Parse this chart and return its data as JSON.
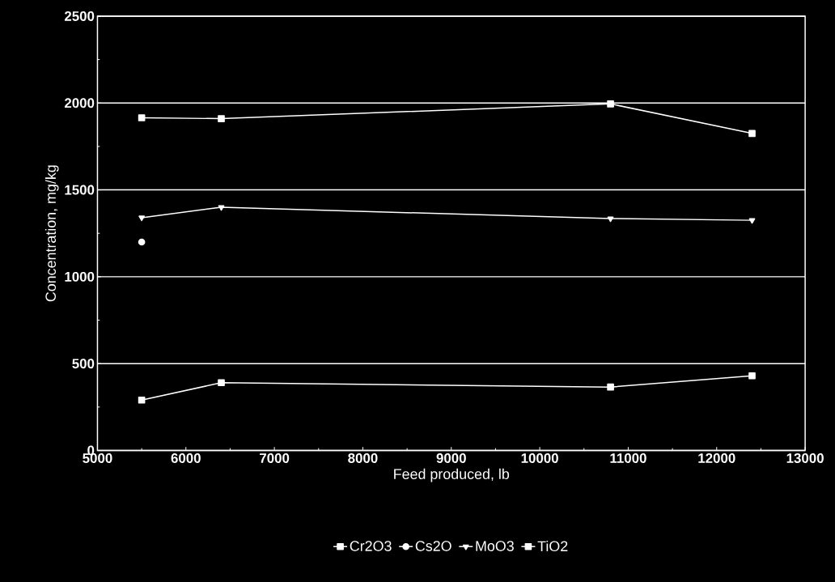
{
  "chart_data": {
    "type": "line",
    "xlabel": "Feed produced, lb",
    "ylabel": "Concentration, mg/kg",
    "xlim": [
      5000,
      13000
    ],
    "xticks": [
      5000,
      6000,
      7000,
      8000,
      9000,
      10000,
      11000,
      12000,
      13000
    ],
    "ylim": [
      0,
      2500
    ],
    "yticks": [
      0,
      500,
      1000,
      1500,
      2000,
      2500
    ],
    "grid": "y",
    "legend": "bottom",
    "series": [
      {
        "name": "Cr2O3",
        "color": "#ffffff",
        "marker": "square",
        "x": [
          5500,
          6400,
          10800,
          12400
        ],
        "values": [
          290,
          390,
          365,
          430
        ]
      },
      {
        "name": "Cs2O",
        "color": "#ffffff",
        "marker": "circle",
        "x": [
          5500
        ],
        "values": [
          1200
        ]
      },
      {
        "name": "MoO3",
        "color": "#ffffff",
        "marker": "triangle",
        "x": [
          5500,
          6400,
          10800,
          12400
        ],
        "values": [
          1340,
          1400,
          1335,
          1325
        ]
      },
      {
        "name": "TiO2",
        "color": "#ffffff",
        "marker": "square",
        "x": [
          5500,
          6400,
          10800,
          12400
        ],
        "values": [
          1915,
          1910,
          1995,
          1825
        ]
      }
    ]
  }
}
